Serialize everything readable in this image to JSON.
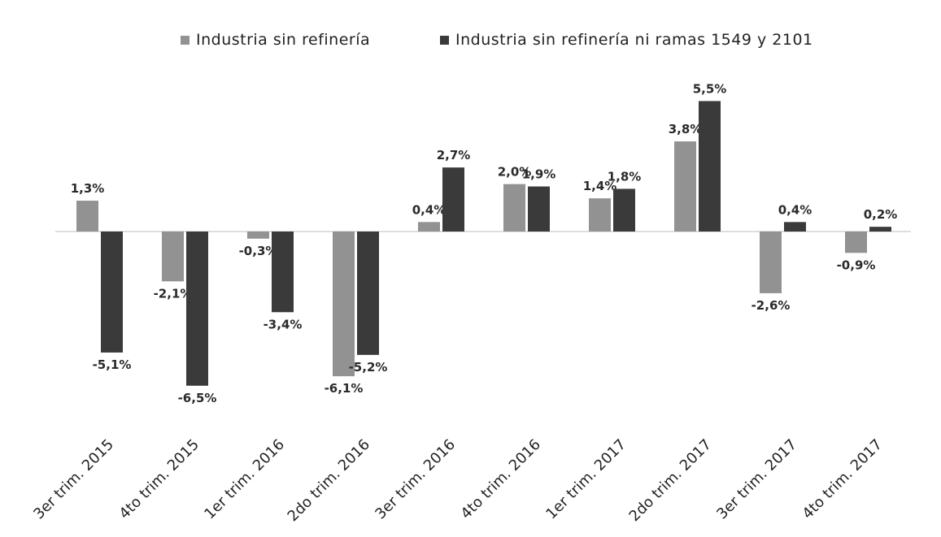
{
  "chart_data": {
    "type": "bar",
    "title": "",
    "xlabel": "",
    "ylabel": "",
    "ylim": [
      -7,
      6
    ],
    "grid": false,
    "legend_position": "top",
    "categories": [
      "3er trim. 2015",
      "4to trim. 2015",
      "1er trim. 2016",
      "2do trim. 2016",
      "3er trim. 2016",
      "4to trim. 2016",
      "1er trim. 2017",
      "2do trim. 2017",
      "3er trim. 2017",
      "4to trim. 2017"
    ],
    "series": [
      {
        "name": "Industria sin refinería",
        "color": "#929292",
        "values": [
          1.3,
          -2.1,
          -0.3,
          -6.1,
          0.4,
          2.0,
          1.4,
          3.8,
          -2.6,
          -0.9
        ],
        "labels": [
          "1,3%",
          "-2,1%",
          "-0,3%",
          "-6,1%",
          "0,4%",
          "2,0%",
          "1,4%",
          "3,8%",
          "-2,6%",
          "-0,9%"
        ]
      },
      {
        "name": "Industria sin refinería ni ramas 1549 y 2101",
        "color": "#3a3a3a",
        "values": [
          -5.1,
          -6.5,
          -3.4,
          -5.2,
          2.7,
          1.9,
          1.8,
          5.5,
          0.4,
          0.2
        ],
        "labels": [
          "-5,1%",
          "-6,5%",
          "-3,4%",
          "-5,2%",
          "2,7%",
          "1,9%",
          "1,8%",
          "5,5%",
          "0,4%",
          "0,2%"
        ]
      }
    ]
  }
}
